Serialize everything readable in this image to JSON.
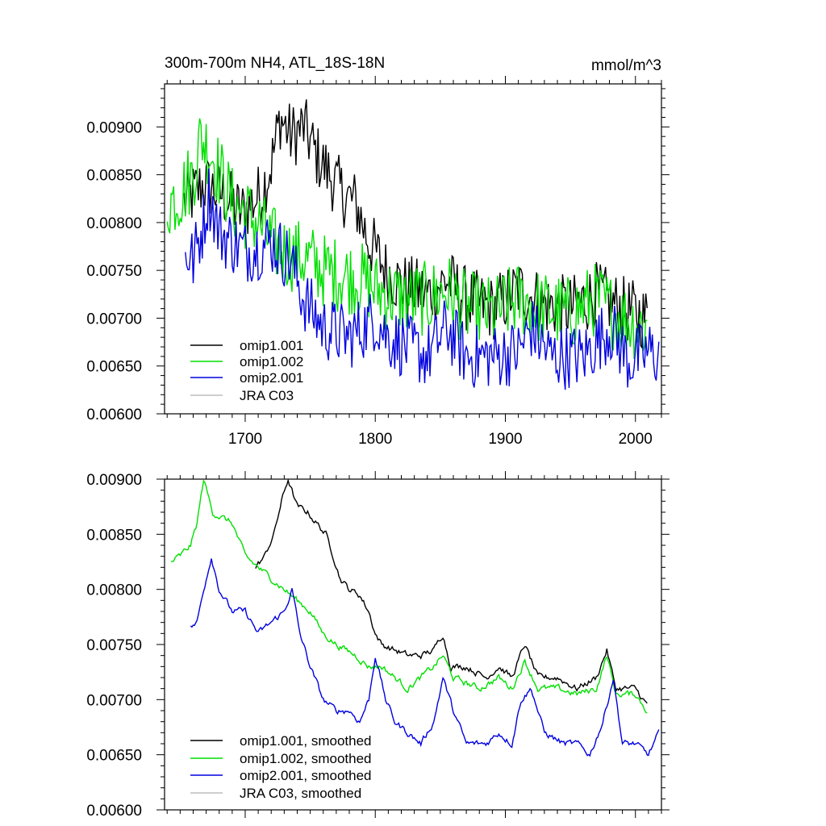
{
  "colors": {
    "omip1_001": "#000000",
    "omip1_002": "#00e000",
    "omip2_001": "#0000e0",
    "jra_c03": "#bdbdbd"
  },
  "chart_data": [
    {
      "type": "line",
      "title": "300m-700m NH4, ATL_18S-18N",
      "units": "mmol/m^3",
      "xlim": [
        1638,
        2020
      ],
      "ylim": [
        0.006,
        0.00945
      ],
      "xticks": [
        "1700",
        "1800",
        "1900",
        "2000"
      ],
      "yticks": [
        "0.00600",
        "0.00650",
        "0.00700",
        "0.00750",
        "0.00800",
        "0.00850",
        "0.00900"
      ],
      "legend_position": "bottom-left",
      "series": [
        {
          "name": "omip1.001",
          "color_key": "omip1_001",
          "start": 1653,
          "end": 2009,
          "points": [
            [
              1653,
              0.0082
            ],
            [
              1668,
              0.0084
            ],
            [
              1682,
              0.0083
            ],
            [
              1697,
              0.0081
            ],
            [
              1712,
              0.0083
            ],
            [
              1720,
              0.0086
            ],
            [
              1727,
              0.0091
            ],
            [
              1735,
              0.0089
            ],
            [
              1745,
              0.009
            ],
            [
              1755,
              0.0087
            ],
            [
              1765,
              0.0085
            ],
            [
              1775,
              0.0083
            ],
            [
              1785,
              0.0082
            ],
            [
              1795,
              0.0078
            ],
            [
              1800,
              0.0077
            ],
            [
              1808,
              0.0075
            ],
            [
              1820,
              0.00735
            ],
            [
              1840,
              0.00725
            ],
            [
              1855,
              0.0074
            ],
            [
              1870,
              0.0072
            ],
            [
              1890,
              0.0071
            ],
            [
              1910,
              0.0073
            ],
            [
              1930,
              0.00715
            ],
            [
              1950,
              0.0071
            ],
            [
              1970,
              0.00725
            ],
            [
              1990,
              0.0071
            ],
            [
              2009,
              0.007
            ]
          ],
          "noise": 0.00035
        },
        {
          "name": "omip1.002",
          "color_key": "omip1_002",
          "start": 1640,
          "end": 2009,
          "points": [
            [
              1640,
              0.0082
            ],
            [
              1650,
              0.0083
            ],
            [
              1660,
              0.0085
            ],
            [
              1666,
              0.0089
            ],
            [
              1675,
              0.0087
            ],
            [
              1690,
              0.0082
            ],
            [
              1700,
              0.0081
            ],
            [
              1710,
              0.008
            ],
            [
              1720,
              0.0078
            ],
            [
              1730,
              0.0077
            ],
            [
              1740,
              0.00765
            ],
            [
              1750,
              0.0076
            ],
            [
              1760,
              0.0075
            ],
            [
              1775,
              0.00745
            ],
            [
              1790,
              0.0074
            ],
            [
              1800,
              0.0073
            ],
            [
              1820,
              0.0072
            ],
            [
              1840,
              0.0072
            ],
            [
              1855,
              0.0073
            ],
            [
              1870,
              0.0071
            ],
            [
              1890,
              0.00705
            ],
            [
              1910,
              0.0072
            ],
            [
              1930,
              0.0071
            ],
            [
              1950,
              0.00705
            ],
            [
              1970,
              0.0072
            ],
            [
              1990,
              0.007
            ],
            [
              2009,
              0.0069
            ]
          ],
          "noise": 0.0004
        },
        {
          "name": "omip2.001",
          "color_key": "omip2_001",
          "start": 1654,
          "end": 2018,
          "points": [
            [
              1654,
              0.0077
            ],
            [
              1660,
              0.0076
            ],
            [
              1668,
              0.008
            ],
            [
              1672,
              0.0083
            ],
            [
              1680,
              0.0079
            ],
            [
              1700,
              0.0077
            ],
            [
              1720,
              0.0078
            ],
            [
              1735,
              0.0076
            ],
            [
              1745,
              0.0072
            ],
            [
              1760,
              0.0069
            ],
            [
              1780,
              0.0068
            ],
            [
              1800,
              0.007
            ],
            [
              1810,
              0.0068
            ],
            [
              1825,
              0.0067
            ],
            [
              1840,
              0.0066
            ],
            [
              1855,
              0.0069
            ],
            [
              1870,
              0.0066
            ],
            [
              1890,
              0.0066
            ],
            [
              1910,
              0.00665
            ],
            [
              1920,
              0.0069
            ],
            [
              1935,
              0.0066
            ],
            [
              1950,
              0.0066
            ],
            [
              1960,
              0.0066
            ],
            [
              1980,
              0.0069
            ],
            [
              1995,
              0.00655
            ],
            [
              2010,
              0.00665
            ],
            [
              2018,
              0.0066
            ]
          ],
          "noise": 0.00035
        }
      ]
    },
    {
      "type": "line",
      "xlim": [
        1638,
        2020
      ],
      "ylim": [
        0.006,
        0.009
      ],
      "yticks": [
        "0.00600",
        "0.00650",
        "0.00700",
        "0.00750",
        "0.00800",
        "0.00850",
        "0.00900"
      ],
      "legend_position": "bottom-left",
      "series": [
        {
          "name": "omip1.001, smoothed",
          "color_key": "omip1_001",
          "start": 1708,
          "end": 2009,
          "points": [
            [
              1708,
              0.0082
            ],
            [
              1715,
              0.0083
            ],
            [
              1722,
              0.0085
            ],
            [
              1728,
              0.0088
            ],
            [
              1733,
              0.009
            ],
            [
              1740,
              0.00875
            ],
            [
              1748,
              0.0087
            ],
            [
              1755,
              0.0086
            ],
            [
              1762,
              0.0085
            ],
            [
              1768,
              0.0083
            ],
            [
              1773,
              0.0081
            ],
            [
              1780,
              0.008
            ],
            [
              1788,
              0.00795
            ],
            [
              1795,
              0.0078
            ],
            [
              1800,
              0.0076
            ],
            [
              1805,
              0.0075
            ],
            [
              1815,
              0.00745
            ],
            [
              1825,
              0.0074
            ],
            [
              1835,
              0.0074
            ],
            [
              1845,
              0.00745
            ],
            [
              1852,
              0.0076
            ],
            [
              1858,
              0.0073
            ],
            [
              1870,
              0.0073
            ],
            [
              1885,
              0.0072
            ],
            [
              1895,
              0.0073
            ],
            [
              1905,
              0.0072
            ],
            [
              1915,
              0.0075
            ],
            [
              1925,
              0.0072
            ],
            [
              1940,
              0.0072
            ],
            [
              1955,
              0.0071
            ],
            [
              1970,
              0.0072
            ],
            [
              1978,
              0.00745
            ],
            [
              1985,
              0.0071
            ],
            [
              2000,
              0.0071
            ],
            [
              2009,
              0.00695
            ]
          ],
          "noise": 6e-05
        },
        {
          "name": "omip1.002, smoothed",
          "color_key": "omip1_002",
          "start": 1643,
          "end": 2009,
          "points": [
            [
              1643,
              0.00825
            ],
            [
              1650,
              0.0083
            ],
            [
              1658,
              0.0084
            ],
            [
              1663,
              0.0086
            ],
            [
              1668,
              0.009
            ],
            [
              1675,
              0.0087
            ],
            [
              1690,
              0.0086
            ],
            [
              1700,
              0.0083
            ],
            [
              1710,
              0.0082
            ],
            [
              1720,
              0.0081
            ],
            [
              1730,
              0.008
            ],
            [
              1740,
              0.0079
            ],
            [
              1750,
              0.0078
            ],
            [
              1760,
              0.0076
            ],
            [
              1770,
              0.0075
            ],
            [
              1785,
              0.0074
            ],
            [
              1795,
              0.0073
            ],
            [
              1805,
              0.0073
            ],
            [
              1815,
              0.0072
            ],
            [
              1825,
              0.0071
            ],
            [
              1835,
              0.0072
            ],
            [
              1845,
              0.0073
            ],
            [
              1852,
              0.0074
            ],
            [
              1860,
              0.0072
            ],
            [
              1880,
              0.0071
            ],
            [
              1895,
              0.0072
            ],
            [
              1905,
              0.0071
            ],
            [
              1915,
              0.00735
            ],
            [
              1925,
              0.0071
            ],
            [
              1940,
              0.0071
            ],
            [
              1955,
              0.00705
            ],
            [
              1970,
              0.0071
            ],
            [
              1978,
              0.0074
            ],
            [
              1985,
              0.00705
            ],
            [
              2000,
              0.00705
            ],
            [
              2009,
              0.0069
            ]
          ],
          "noise": 6e-05
        },
        {
          "name": "omip2.001, smoothed",
          "color_key": "omip2_001",
          "start": 1658,
          "end": 2018,
          "points": [
            [
              1658,
              0.00765
            ],
            [
              1663,
              0.0077
            ],
            [
              1668,
              0.008
            ],
            [
              1674,
              0.0083
            ],
            [
              1680,
              0.008
            ],
            [
              1690,
              0.0078
            ],
            [
              1700,
              0.0078
            ],
            [
              1710,
              0.0076
            ],
            [
              1720,
              0.0077
            ],
            [
              1730,
              0.0078
            ],
            [
              1736,
              0.008
            ],
            [
              1742,
              0.0076
            ],
            [
              1750,
              0.0073
            ],
            [
              1760,
              0.007
            ],
            [
              1770,
              0.0069
            ],
            [
              1780,
              0.0069
            ],
            [
              1788,
              0.0068
            ],
            [
              1795,
              0.007
            ],
            [
              1800,
              0.0074
            ],
            [
              1808,
              0.007
            ],
            [
              1815,
              0.0068
            ],
            [
              1825,
              0.0067
            ],
            [
              1835,
              0.0066
            ],
            [
              1845,
              0.0068
            ],
            [
              1852,
              0.0072
            ],
            [
              1860,
              0.0069
            ],
            [
              1870,
              0.0066
            ],
            [
              1885,
              0.0066
            ],
            [
              1895,
              0.0067
            ],
            [
              1905,
              0.0066
            ],
            [
              1912,
              0.007
            ],
            [
              1920,
              0.0071
            ],
            [
              1930,
              0.0067
            ],
            [
              1945,
              0.0066
            ],
            [
              1955,
              0.0066
            ],
            [
              1965,
              0.0065
            ],
            [
              1975,
              0.0068
            ],
            [
              1983,
              0.0072
            ],
            [
              1990,
              0.0066
            ],
            [
              2000,
              0.0066
            ],
            [
              2010,
              0.0065
            ],
            [
              2018,
              0.0067
            ]
          ],
          "noise": 6e-05
        },
        {
          "name": "JRA C03, smoothed",
          "color_key": "jra_c03",
          "points": []
        }
      ]
    }
  ],
  "legend_top": [
    {
      "label": "omip1.001",
      "color_key": "omip1_001"
    },
    {
      "label": "omip1.002",
      "color_key": "omip1_002"
    },
    {
      "label": "omip2.001",
      "color_key": "omip2_001"
    },
    {
      "label": "JRA C03",
      "color_key": "jra_c03"
    }
  ],
  "legend_bottom": [
    {
      "label": "omip1.001, smoothed",
      "color_key": "omip1_001"
    },
    {
      "label": "omip1.002, smoothed",
      "color_key": "omip1_002"
    },
    {
      "label": "omip2.001, smoothed",
      "color_key": "omip2_001"
    },
    {
      "label": "JRA C03, smoothed",
      "color_key": "jra_c03"
    }
  ]
}
